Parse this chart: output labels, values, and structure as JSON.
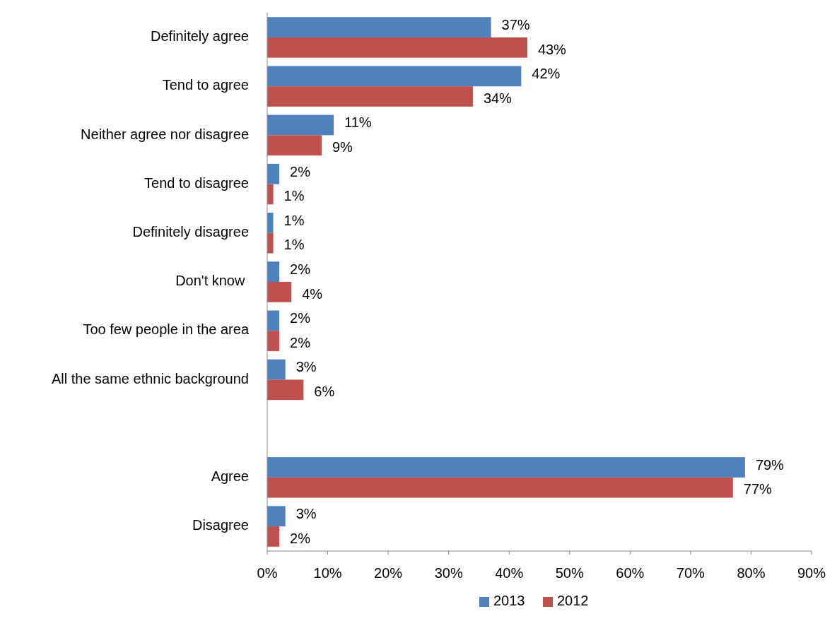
{
  "chart_data": {
    "type": "bar",
    "orientation": "horizontal",
    "categories": [
      "Definitely agree",
      "Tend to agree",
      "Neither agree nor disagree",
      "Tend to disagree",
      "Definitely disagree",
      "Don't know ",
      "Too few people in the area",
      "All the same ethnic background",
      null,
      "Agree",
      "Disagree"
    ],
    "series": [
      {
        "name": "2013",
        "color": "#4f81bd",
        "values": [
          37,
          42,
          11,
          2,
          1,
          2,
          2,
          3,
          null,
          79,
          3
        ],
        "value_labels": [
          "37%",
          "42%",
          "11%",
          "2%",
          "1%",
          "2%",
          "2%",
          "3%",
          null,
          "79%",
          "3%"
        ]
      },
      {
        "name": "2012",
        "color": "#c0504d",
        "values": [
          43,
          34,
          9,
          1,
          1,
          4,
          2,
          6,
          null,
          77,
          2
        ],
        "value_labels": [
          "43%",
          "34%",
          "9%",
          "1%",
          "1%",
          "4%",
          "2%",
          "6%",
          null,
          "77%",
          "2%"
        ]
      }
    ],
    "xlim": [
      0,
      90
    ],
    "xticks": [
      {
        "value": 0,
        "label": "0%"
      },
      {
        "value": 10,
        "label": "10%"
      },
      {
        "value": 20,
        "label": "20%"
      },
      {
        "value": 30,
        "label": "30%"
      },
      {
        "value": 40,
        "label": "40%"
      },
      {
        "value": 50,
        "label": "50%"
      },
      {
        "value": 60,
        "label": "60%"
      },
      {
        "value": 70,
        "label": "70%"
      },
      {
        "value": 80,
        "label": "80%"
      },
      {
        "value": 90,
        "label": "90%"
      }
    ],
    "legend": "bottom"
  }
}
